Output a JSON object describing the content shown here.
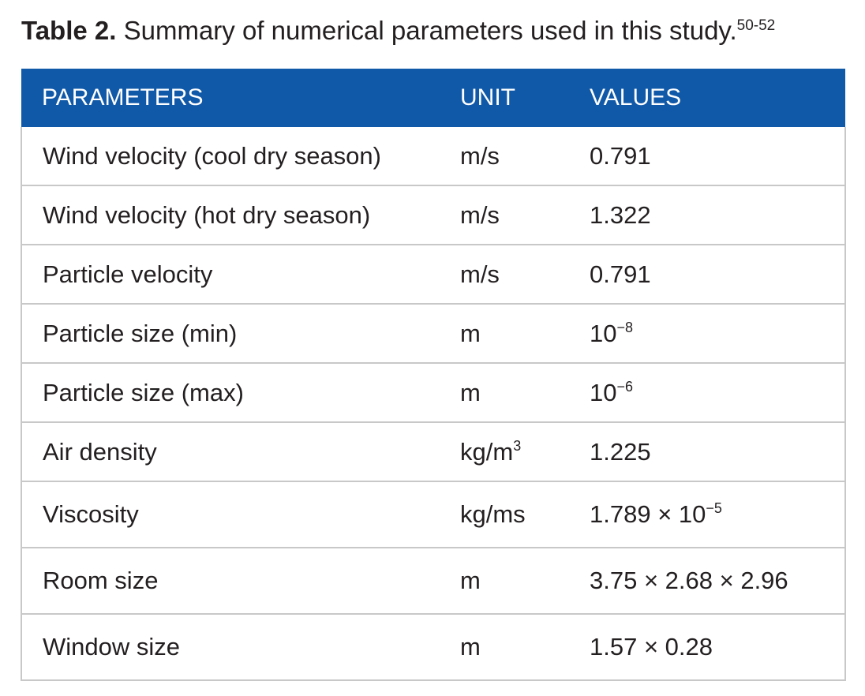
{
  "caption": {
    "label": "Table 2.",
    "text": "Summary of numerical parameters used in this study.",
    "refs": "50-52"
  },
  "table": {
    "headers": [
      "PARAMETERS",
      "UNIT",
      "VALUES"
    ],
    "rows": [
      {
        "parameter": "Wind velocity (cool dry season)",
        "unit": "m/s",
        "unit_sup": "",
        "value": "0.791",
        "value_sup": ""
      },
      {
        "parameter": "Wind velocity (hot dry season)",
        "unit": "m/s",
        "unit_sup": "",
        "value": "1.322",
        "value_sup": ""
      },
      {
        "parameter": "Particle velocity",
        "unit": "m/s",
        "unit_sup": "",
        "value": "0.791",
        "value_sup": ""
      },
      {
        "parameter": "Particle size (min)",
        "unit": "m",
        "unit_sup": "",
        "value": "10",
        "value_sup": "−8"
      },
      {
        "parameter": "Particle size (max)",
        "unit": "m",
        "unit_sup": "",
        "value": "10",
        "value_sup": "−6"
      },
      {
        "parameter": "Air density",
        "unit": "kg/m",
        "unit_sup": "3",
        "value": "1.225",
        "value_sup": ""
      },
      {
        "parameter": "Viscosity",
        "unit": "kg/ms",
        "unit_sup": "",
        "value": "1.789 × 10",
        "value_sup": "−5"
      },
      {
        "parameter": "Room size",
        "unit": "m",
        "unit_sup": "",
        "value": "3.75 × 2.68 × 2.96",
        "value_sup": ""
      },
      {
        "parameter": "Window size",
        "unit": "m",
        "unit_sup": "",
        "value": "1.57 × 0.28",
        "value_sup": ""
      }
    ]
  },
  "colors": {
    "header_bg": "#1058a8",
    "header_text": "#ffffff",
    "border": "#c8c8c8"
  }
}
